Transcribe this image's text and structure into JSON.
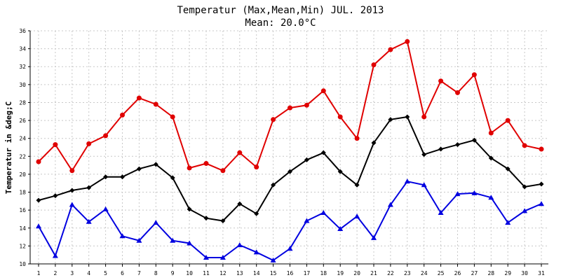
{
  "chart_data": {
    "type": "line",
    "title": "Temperatur (Max,Mean,Min) JUL. 2013",
    "subtitle": "Mean: 20.0°C",
    "xlabel": "",
    "ylabel": "Temperatur in &deg;C",
    "categories": [
      "1",
      "2",
      "3",
      "4",
      "5",
      "6",
      "7",
      "8",
      "9",
      "10",
      "11",
      "12",
      "13",
      "14",
      "15",
      "16",
      "17",
      "18",
      "19",
      "20",
      "21",
      "22",
      "23",
      "24",
      "25",
      "26",
      "27",
      "28",
      "29",
      "30",
      "31"
    ],
    "ylim": [
      10,
      36
    ],
    "yticks": [
      "10",
      "12",
      "14",
      "16",
      "18",
      "20",
      "22",
      "24",
      "26",
      "28",
      "30",
      "32",
      "34",
      "36"
    ],
    "grid": true,
    "series": [
      {
        "color": "#e00000",
        "marker": "circle",
        "values": [
          21.4,
          23.3,
          20.4,
          23.4,
          24.3,
          26.6,
          28.5,
          27.8,
          26.4,
          20.7,
          21.2,
          20.4,
          22.4,
          20.8,
          26.1,
          27.4,
          27.7,
          29.3,
          26.4,
          24.0,
          32.2,
          33.9,
          34.8,
          26.4,
          30.4,
          29.1,
          31.1,
          24.6,
          26.0,
          23.2,
          22.8
        ]
      },
      {
        "color": "#000000",
        "marker": "diamond",
        "values": [
          17.1,
          17.6,
          18.2,
          18.5,
          19.7,
          19.7,
          20.6,
          21.1,
          19.6,
          16.1,
          15.1,
          14.8,
          16.7,
          15.6,
          18.8,
          20.3,
          21.6,
          22.4,
          20.3,
          18.8,
          23.5,
          26.1,
          26.4,
          22.2,
          22.8,
          23.3,
          23.8,
          21.8,
          20.6,
          18.6,
          18.9
        ]
      },
      {
        "color": "#0000e0",
        "marker": "triangle",
        "values": [
          14.2,
          10.9,
          16.6,
          14.7,
          16.1,
          13.1,
          12.6,
          14.6,
          12.6,
          12.3,
          10.7,
          10.7,
          12.1,
          11.3,
          10.4,
          11.7,
          14.8,
          15.7,
          13.9,
          15.3,
          12.9,
          16.6,
          19.2,
          18.8,
          15.7,
          17.8,
          17.9,
          17.4,
          14.6,
          15.9,
          16.7
        ]
      }
    ]
  }
}
